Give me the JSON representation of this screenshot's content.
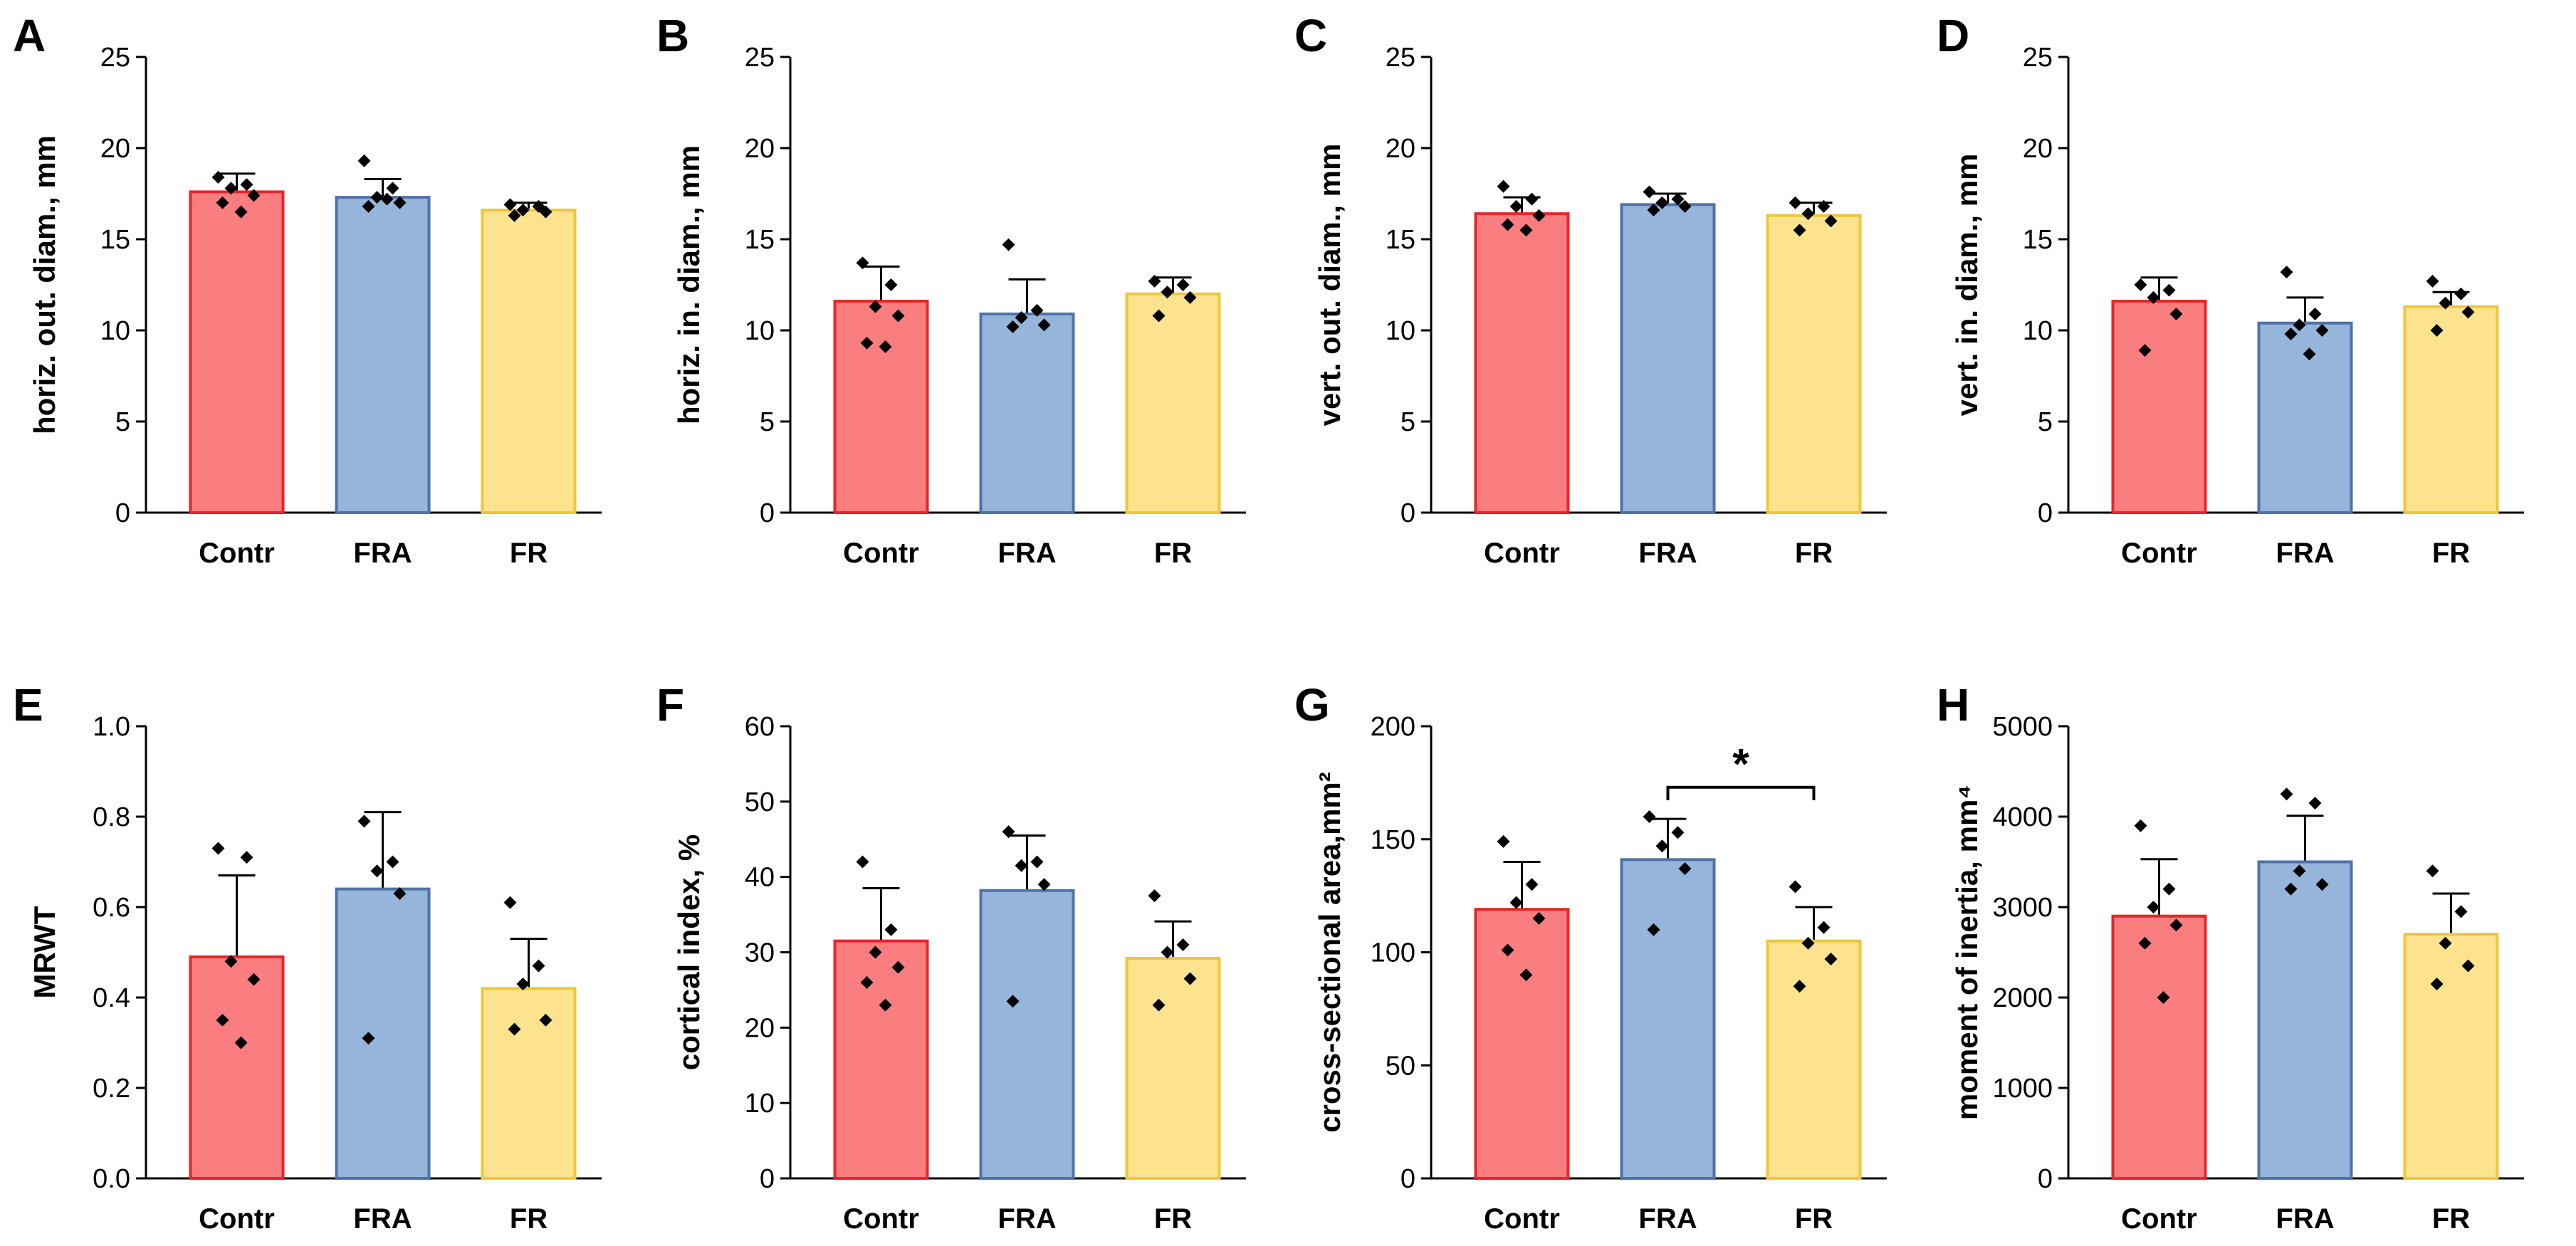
{
  "figure": {
    "groups": [
      "Contr",
      "FRA",
      "FR"
    ],
    "group_colors": {
      "Contr": {
        "fill": "#fa7d7f",
        "stroke": "#e3262b"
      },
      "FRA": {
        "fill": "#95b5db",
        "stroke": "#4f72a8"
      },
      "FR": {
        "fill": "#fde38d",
        "stroke": "#f0c63a"
      }
    },
    "point_color": "#000000",
    "error_bar_color": "#000000"
  },
  "chart_data": [
    {
      "panel": "A",
      "type": "bar",
      "ylabel": "horiz. out. diam., mm",
      "categories": [
        "Contr",
        "FRA",
        "FR"
      ],
      "ylim": [
        0,
        25
      ],
      "yticks": [
        0,
        5,
        10,
        15,
        20,
        25
      ],
      "values": [
        17.6,
        17.3,
        16.6
      ],
      "errors": [
        1.0,
        1.0,
        0.4
      ],
      "points": [
        [
          18.4,
          18.0,
          17.8,
          17.4,
          17.0,
          16.5
        ],
        [
          19.3,
          17.8,
          17.3,
          17.0,
          16.8,
          17.2
        ],
        [
          16.9,
          16.8,
          16.6,
          16.5,
          16.3
        ]
      ]
    },
    {
      "panel": "B",
      "type": "bar",
      "ylabel": "horiz. in. diam., mm",
      "categories": [
        "Contr",
        "FRA",
        "FR"
      ],
      "ylim": [
        0,
        25
      ],
      "yticks": [
        0,
        5,
        10,
        15,
        20,
        25
      ],
      "values": [
        11.6,
        10.9,
        12.0
      ],
      "errors": [
        1.9,
        1.9,
        0.9
      ],
      "points": [
        [
          13.7,
          12.5,
          11.3,
          10.8,
          9.3,
          9.1
        ],
        [
          14.7,
          11.1,
          10.7,
          10.3,
          10.2
        ],
        [
          12.7,
          12.5,
          12.1,
          11.8,
          10.8
        ]
      ]
    },
    {
      "panel": "C",
      "type": "bar",
      "ylabel": "vert. out. diam., mm",
      "categories": [
        "Contr",
        "FRA",
        "FR"
      ],
      "ylim": [
        0,
        25
      ],
      "yticks": [
        0,
        5,
        10,
        15,
        20,
        25
      ],
      "values": [
        16.4,
        16.9,
        16.3
      ],
      "errors": [
        0.9,
        0.6,
        0.7
      ],
      "points": [
        [
          17.9,
          17.2,
          16.8,
          16.3,
          15.8,
          15.5
        ],
        [
          17.6,
          17.2,
          17.0,
          16.8,
          16.6
        ],
        [
          17.0,
          16.8,
          16.4,
          16.0,
          15.5
        ]
      ]
    },
    {
      "panel": "D",
      "type": "bar",
      "ylabel": "vert. in. diam., mm",
      "categories": [
        "Contr",
        "FRA",
        "FR"
      ],
      "ylim": [
        0,
        25
      ],
      "yticks": [
        0,
        5,
        10,
        15,
        20,
        25
      ],
      "values": [
        11.6,
        10.4,
        11.3
      ],
      "errors": [
        1.3,
        1.4,
        0.8
      ],
      "points": [
        [
          12.5,
          12.2,
          11.8,
          10.9,
          8.9
        ],
        [
          13.2,
          10.9,
          10.3,
          10.0,
          9.8,
          8.7
        ],
        [
          12.7,
          12.0,
          11.5,
          11.0,
          10.0
        ]
      ]
    },
    {
      "panel": "E",
      "type": "bar",
      "ylabel": "MRWT",
      "categories": [
        "Contr",
        "FRA",
        "FR"
      ],
      "ylim": [
        0,
        1.0
      ],
      "yticks": [
        "0.0",
        "0.2",
        "0.4",
        "0.6",
        "0.8",
        "1.0"
      ],
      "values": [
        0.49,
        0.64,
        0.42
      ],
      "errors": [
        0.18,
        0.17,
        0.11
      ],
      "points": [
        [
          0.73,
          0.71,
          0.48,
          0.44,
          0.35,
          0.3
        ],
        [
          0.79,
          0.7,
          0.68,
          0.63,
          0.31
        ],
        [
          0.61,
          0.47,
          0.43,
          0.35,
          0.33
        ]
      ]
    },
    {
      "panel": "F",
      "type": "bar",
      "ylabel": "cortical index, %",
      "categories": [
        "Contr",
        "FRA",
        "FR"
      ],
      "ylim": [
        0,
        60
      ],
      "yticks": [
        0,
        10,
        20,
        30,
        40,
        50,
        60
      ],
      "values": [
        31.5,
        38.2,
        29.2
      ],
      "errors": [
        7.0,
        7.3,
        4.9
      ],
      "points": [
        [
          42.0,
          33.0,
          30.0,
          28.0,
          26.0,
          23.0
        ],
        [
          46.0,
          42.0,
          41.5,
          39.0,
          23.5
        ],
        [
          37.5,
          31.0,
          30.0,
          26.5,
          23.0
        ]
      ]
    },
    {
      "panel": "G",
      "type": "bar",
      "ylabel": "cross-sectional area,mm²",
      "categories": [
        "Contr",
        "FRA",
        "FR"
      ],
      "ylim": [
        0,
        200
      ],
      "yticks": [
        0,
        50,
        100,
        150,
        200
      ],
      "values": [
        119,
        141,
        105
      ],
      "errors": [
        21,
        18,
        15
      ],
      "points": [
        [
          149,
          130,
          122,
          115,
          101,
          90
        ],
        [
          160,
          153,
          147,
          137,
          110
        ],
        [
          129,
          111,
          104,
          97,
          85
        ]
      ],
      "significance": {
        "from": "FRA",
        "to": "FR",
        "label": "*",
        "level": 173
      }
    },
    {
      "panel": "H",
      "type": "bar",
      "ylabel": "moment of inertia, mm⁴",
      "categories": [
        "Contr",
        "FRA",
        "FR"
      ],
      "ylim": [
        0,
        5000
      ],
      "yticks": [
        0,
        1000,
        2000,
        3000,
        4000,
        5000
      ],
      "values": [
        2900,
        3500,
        2700
      ],
      "errors": [
        630,
        510,
        450
      ],
      "points": [
        [
          3900,
          3200,
          3000,
          2800,
          2600,
          2000
        ],
        [
          4250,
          4150,
          3400,
          3250,
          3200
        ],
        [
          3400,
          2950,
          2600,
          2350,
          2150
        ]
      ]
    }
  ]
}
